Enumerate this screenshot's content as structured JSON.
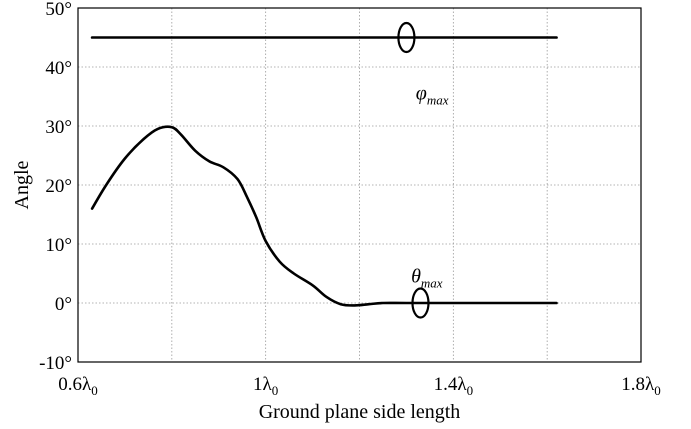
{
  "chart_data": {
    "type": "line",
    "title": "",
    "xlabel": "Ground plane side length",
    "ylabel": "Angle",
    "xlim": [
      0.6,
      1.8
    ],
    "ylim": [
      -10,
      50
    ],
    "grid": true,
    "x_ticks": [
      {
        "value": 0.6,
        "base": "0.6λ",
        "sub": "0"
      },
      {
        "value": 1.0,
        "base": "1λ",
        "sub": "0"
      },
      {
        "value": 1.4,
        "base": "1.4λ",
        "sub": "0"
      },
      {
        "value": 1.8,
        "base": "1.8λ",
        "sub": "0"
      }
    ],
    "x_minor_grid": [
      0.8,
      1.2,
      1.6
    ],
    "y_ticks": [
      {
        "value": -10,
        "label": "-10°"
      },
      {
        "value": 0,
        "label": "0°"
      },
      {
        "value": 10,
        "label": "10°"
      },
      {
        "value": 20,
        "label": "20°"
      },
      {
        "value": 30,
        "label": "30°"
      },
      {
        "value": 40,
        "label": "40°"
      },
      {
        "value": 50,
        "label": "50°"
      }
    ],
    "series": [
      {
        "name": "φmax",
        "label_base": "φ",
        "label_sub": "max",
        "label_at": [
          1.32,
          34.5
        ],
        "marker_x": 1.3,
        "x": [
          0.63,
          1.62
        ],
        "y": [
          45,
          45
        ]
      },
      {
        "name": "θmax",
        "label_base": "θ",
        "label_sub": "max",
        "label_at": [
          1.31,
          3.5
        ],
        "marker_x": 1.33,
        "x": [
          0.63,
          0.66,
          0.7,
          0.74,
          0.77,
          0.8,
          0.82,
          0.85,
          0.88,
          0.91,
          0.94,
          0.96,
          0.98,
          1.0,
          1.03,
          1.06,
          1.1,
          1.13,
          1.16,
          1.19,
          1.22,
          1.25,
          1.3,
          1.4,
          1.5,
          1.62
        ],
        "y": [
          16,
          20,
          24.5,
          27.8,
          29.5,
          29.8,
          28.5,
          25.8,
          24.0,
          23.0,
          21.0,
          18.0,
          14.5,
          10.5,
          7.0,
          5.0,
          3.0,
          1.0,
          -0.2,
          -0.4,
          -0.2,
          0,
          0,
          0,
          0,
          0
        ]
      }
    ]
  }
}
